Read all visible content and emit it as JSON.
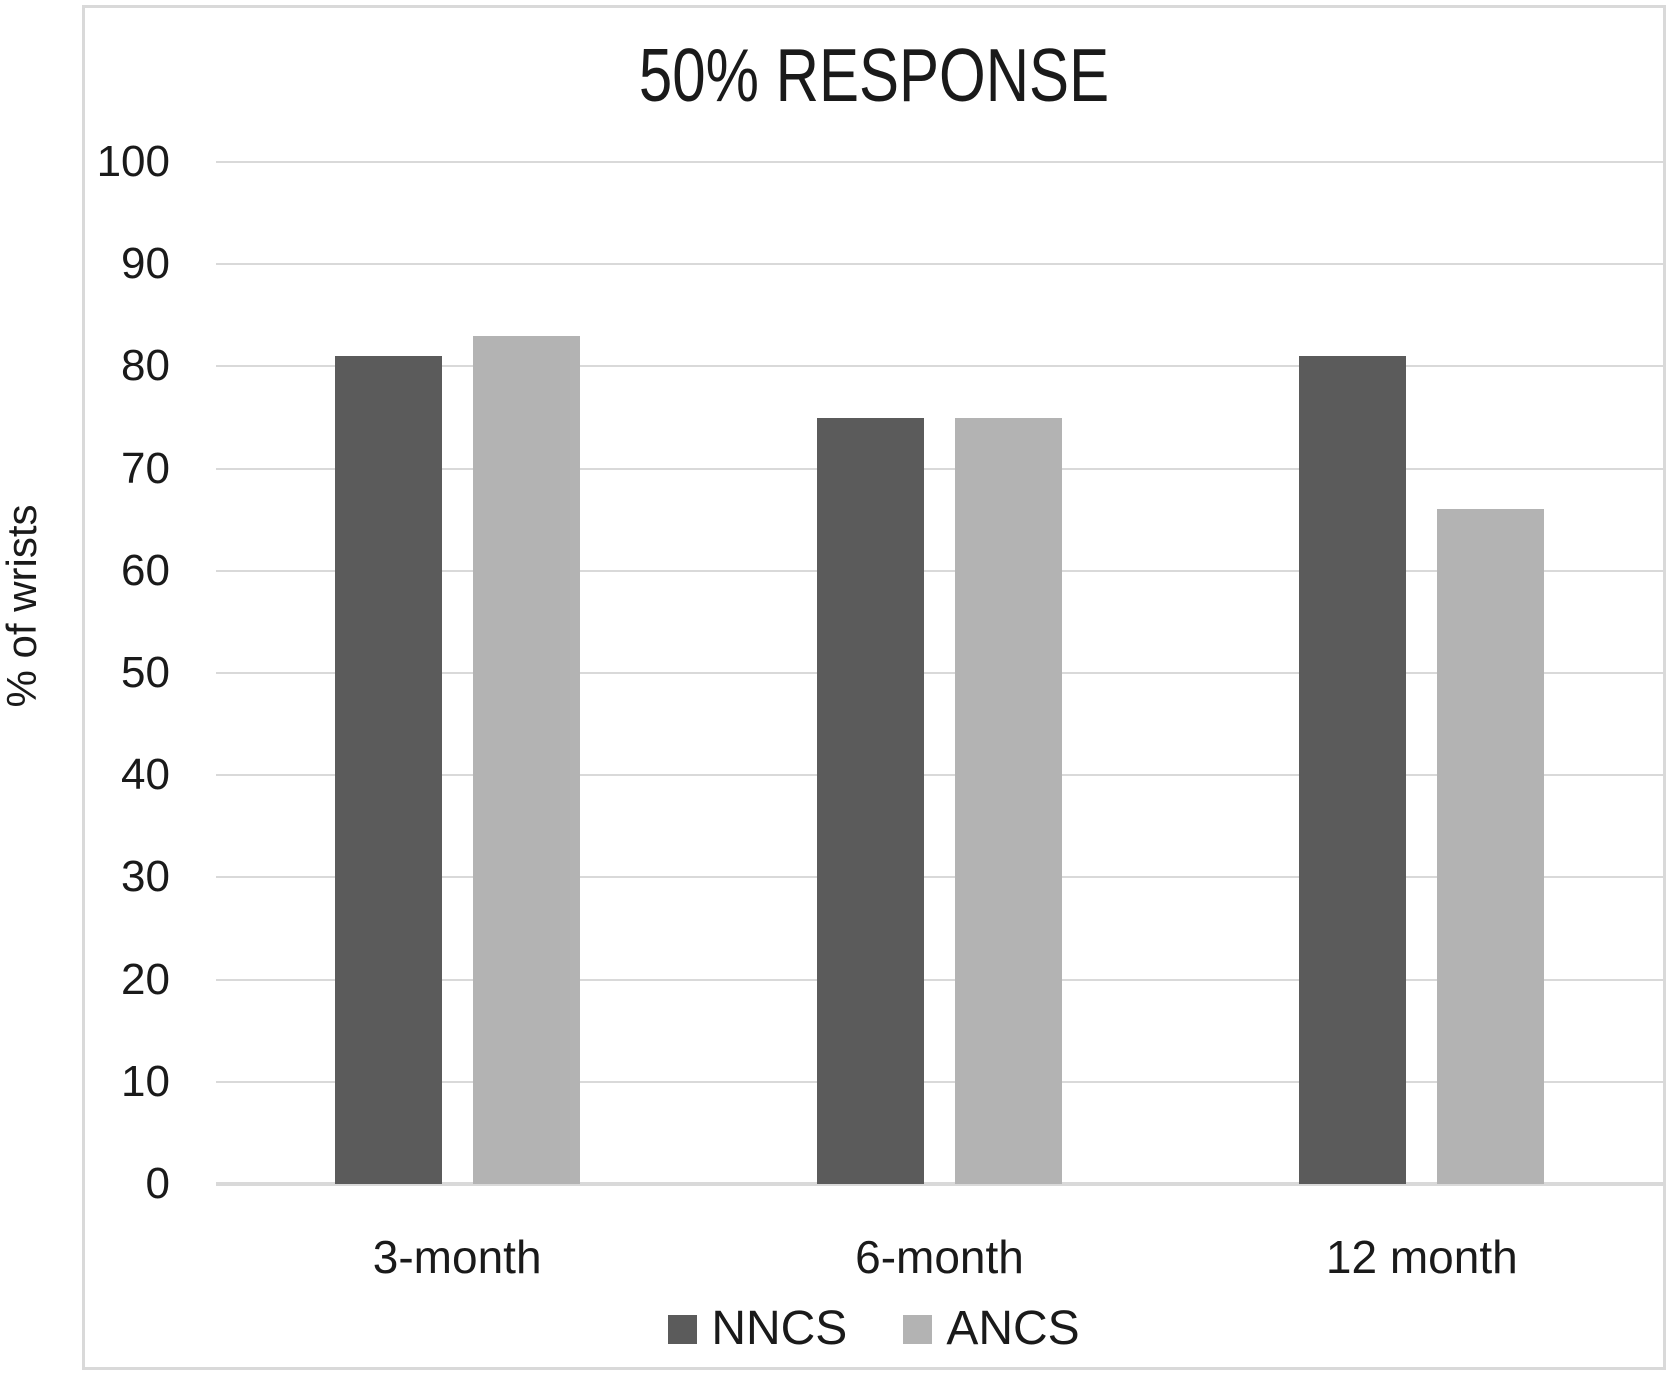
{
  "chart_data": {
    "type": "bar",
    "title": "50% RESPONSE",
    "xlabel": "",
    "ylabel": "% of wrists",
    "categories": [
      "3-month",
      "6-month",
      "12 month"
    ],
    "series": [
      {
        "name": "NNCS",
        "color": "#5b5b5b",
        "values": [
          81,
          75,
          81
        ]
      },
      {
        "name": "ANCS",
        "color": "#b3b3b3",
        "values": [
          83,
          75,
          66
        ]
      }
    ],
    "ylim": [
      0,
      100
    ],
    "yticks": [
      0,
      10,
      20,
      30,
      40,
      50,
      60,
      70,
      80,
      90,
      100
    ],
    "grid": true,
    "legend_position": "bottom"
  },
  "colors": {
    "gridline": "#d9d9d9",
    "axis_baseline": "#d9d9d9",
    "frame_border": "#d9d9d9",
    "text": "#1a1a1a"
  }
}
